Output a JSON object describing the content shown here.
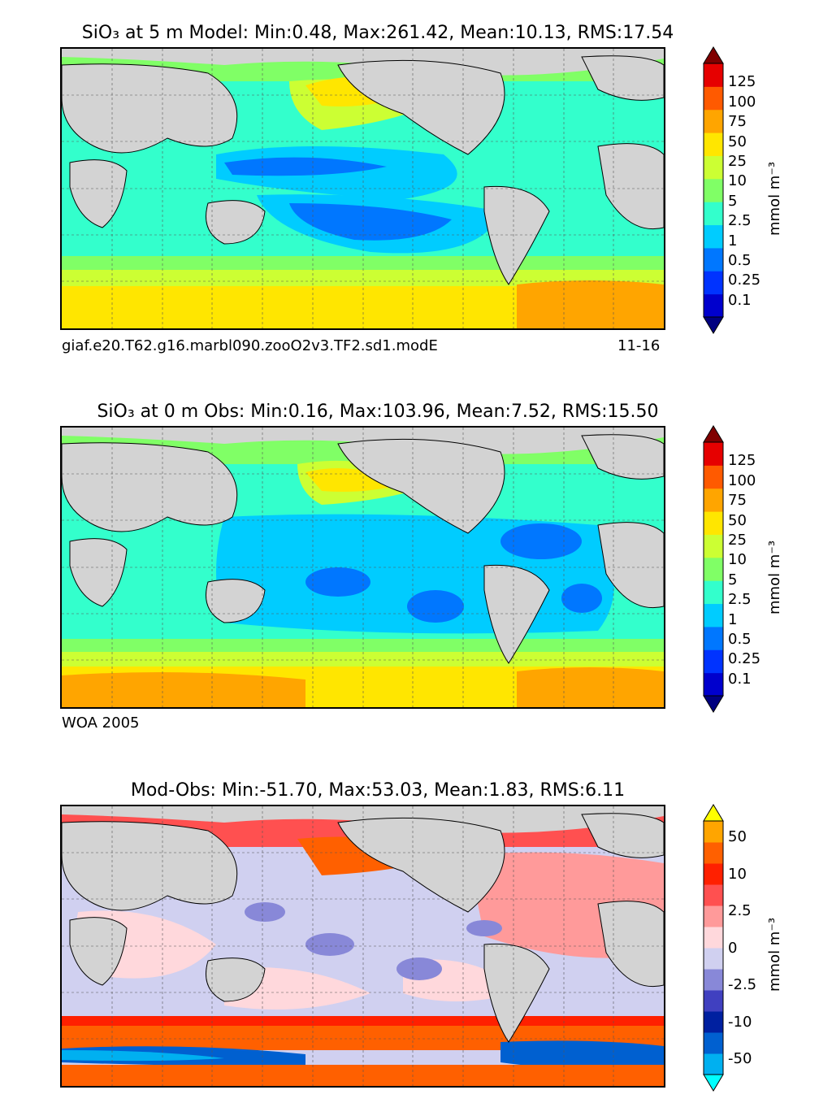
{
  "chart_data": [
    {
      "type": "heatmap",
      "title": "SiO₃ at 5 m Model: Min:0.48, Max:261.42, Mean:10.13, RMS:17.54",
      "stats": {
        "min": 0.48,
        "max": 261.42,
        "mean": 10.13,
        "rms": 17.54
      },
      "caption_left": "giaf.e20.T62.g16.marbl090.zooO2v3.TF2.sd1.modE",
      "caption_right": "11-16",
      "colorbar": {
        "ticks": [
          "125",
          "100",
          "75",
          "50",
          "25",
          "10",
          "5",
          "2.5",
          "1",
          "0.5",
          "0.25",
          "0.1"
        ],
        "colors": [
          "#000080",
          "#0000cd",
          "#0033ff",
          "#0077ff",
          "#00ccff",
          "#33ffcc",
          "#80ff66",
          "#ccff33",
          "#ffe600",
          "#ffa500",
          "#ff5a00",
          "#e60000",
          "#800000"
        ],
        "label": "mmol m⁻³"
      }
    },
    {
      "type": "heatmap",
      "title": "SiO₃ at 0 m Obs: Min:0.16, Max:103.96, Mean:7.52, RMS:15.50",
      "stats": {
        "min": 0.16,
        "max": 103.96,
        "mean": 7.52,
        "rms": 15.5
      },
      "caption_left": "WOA 2005",
      "colorbar": {
        "ticks": [
          "125",
          "100",
          "75",
          "50",
          "25",
          "10",
          "5",
          "2.5",
          "1",
          "0.5",
          "0.25",
          "0.1"
        ],
        "colors": [
          "#000080",
          "#0000cd",
          "#0033ff",
          "#0077ff",
          "#00ccff",
          "#33ffcc",
          "#80ff66",
          "#ccff33",
          "#ffe600",
          "#ffa500",
          "#ff5a00",
          "#e60000",
          "#800000"
        ],
        "label": "mmol m⁻³"
      }
    },
    {
      "type": "heatmap",
      "title": "Mod-Obs: Min:-51.70, Max:53.03, Mean:1.83, RMS:6.11",
      "stats": {
        "min": -51.7,
        "max": 53.03,
        "mean": 1.83,
        "rms": 6.11
      },
      "colorbar": {
        "ticks": [
          "50",
          "10",
          "2.5",
          "0",
          "-2.5",
          "-10",
          "-50"
        ],
        "colors": [
          "#00ffff",
          "#00b0f0",
          "#0060d0",
          "#0020a0",
          "#4040c0",
          "#8888d8",
          "#d0d0f0",
          "#ffd8dc",
          "#ff9a9a",
          "#ff5050",
          "#ff2000",
          "#ff6000",
          "#ffa500",
          "#ffff00"
        ],
        "label": "mmol m⁻³"
      }
    }
  ]
}
